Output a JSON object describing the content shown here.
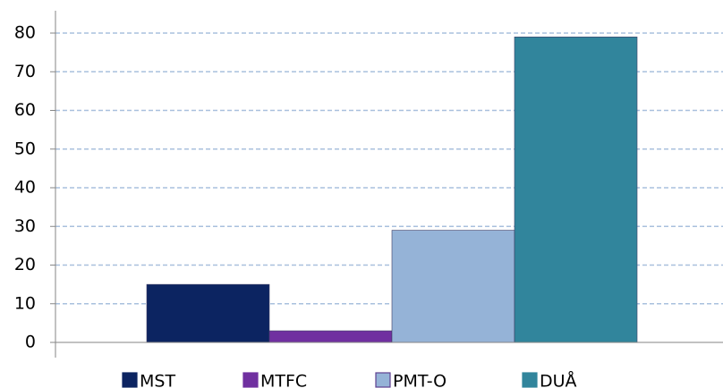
{
  "chart_data": {
    "type": "bar",
    "categories": [
      null
    ],
    "series": [
      {
        "name": "MST",
        "color": "#0c2461",
        "values": [
          15
        ]
      },
      {
        "name": "MTFC",
        "color": "#7030a0",
        "values": [
          3
        ]
      },
      {
        "name": "PMT-O",
        "color": "#95b3d7",
        "values": [
          29
        ]
      },
      {
        "name": "DUÅ",
        "color": "#31859c",
        "values": [
          79
        ]
      }
    ],
    "ylim": [
      0,
      85
    ],
    "yticks": [
      0,
      10,
      20,
      30,
      40,
      50,
      60,
      70,
      80
    ],
    "grid": true,
    "legend": "bottom"
  }
}
